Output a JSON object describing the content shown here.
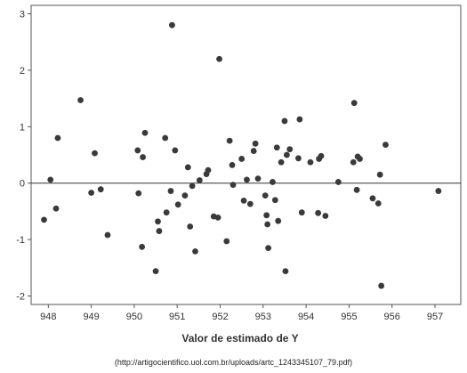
{
  "chart_data": {
    "type": "scatter",
    "title": "",
    "xlabel": "Valor de estimado de Y",
    "ylabel": "",
    "xlim": [
      947.6,
      957.6
    ],
    "ylim": [
      -2.15,
      3.15
    ],
    "xticks": [
      948,
      949,
      950,
      951,
      952,
      953,
      954,
      955,
      956,
      957
    ],
    "yticks": [
      -2,
      -1,
      0,
      1,
      2,
      3
    ],
    "reference_line_y": 0,
    "grid": false,
    "marker_color": "#3a3a3a",
    "points": [
      [
        947.9,
        -0.65
      ],
      [
        948.05,
        0.06
      ],
      [
        948.18,
        -0.45
      ],
      [
        948.22,
        0.8
      ],
      [
        948.75,
        1.47
      ],
      [
        949.0,
        -0.17
      ],
      [
        949.08,
        0.53
      ],
      [
        949.22,
        -0.11
      ],
      [
        949.38,
        -0.92
      ],
      [
        950.08,
        0.58
      ],
      [
        950.1,
        -0.18
      ],
      [
        950.18,
        -1.13
      ],
      [
        950.2,
        0.46
      ],
      [
        950.25,
        0.89
      ],
      [
        950.5,
        -1.56
      ],
      [
        950.55,
        -0.68
      ],
      [
        950.58,
        -0.85
      ],
      [
        950.72,
        0.8
      ],
      [
        950.75,
        -0.52
      ],
      [
        950.85,
        -0.14
      ],
      [
        950.88,
        2.8
      ],
      [
        950.95,
        0.58
      ],
      [
        951.02,
        -0.38
      ],
      [
        951.18,
        -0.22
      ],
      [
        951.25,
        0.28
      ],
      [
        951.3,
        -0.77
      ],
      [
        951.35,
        -0.05
      ],
      [
        951.42,
        -1.21
      ],
      [
        951.52,
        0.05
      ],
      [
        951.68,
        0.16
      ],
      [
        951.72,
        0.23
      ],
      [
        951.85,
        -0.59
      ],
      [
        951.95,
        -0.61
      ],
      [
        951.98,
        2.2
      ],
      [
        952.15,
        -1.03
      ],
      [
        952.22,
        0.75
      ],
      [
        952.28,
        0.32
      ],
      [
        952.3,
        -0.03
      ],
      [
        952.5,
        0.43
      ],
      [
        952.55,
        -0.31
      ],
      [
        952.62,
        0.06
      ],
      [
        952.7,
        -0.37
      ],
      [
        952.78,
        0.57
      ],
      [
        952.82,
        0.7
      ],
      [
        952.88,
        0.08
      ],
      [
        953.05,
        -0.22
      ],
      [
        953.08,
        -0.57
      ],
      [
        953.1,
        -0.73
      ],
      [
        953.12,
        -1.15
      ],
      [
        953.22,
        0.02
      ],
      [
        953.28,
        -0.3
      ],
      [
        953.32,
        0.63
      ],
      [
        953.35,
        -0.67
      ],
      [
        953.42,
        0.37
      ],
      [
        953.5,
        1.1
      ],
      [
        953.52,
        -1.56
      ],
      [
        953.55,
        0.5
      ],
      [
        953.62,
        0.6
      ],
      [
        953.82,
        0.44
      ],
      [
        953.85,
        1.13
      ],
      [
        953.9,
        -0.52
      ],
      [
        954.1,
        0.37
      ],
      [
        954.28,
        -0.53
      ],
      [
        954.3,
        0.43
      ],
      [
        954.35,
        0.48
      ],
      [
        954.45,
        -0.58
      ],
      [
        954.75,
        0.02
      ],
      [
        955.1,
        0.37
      ],
      [
        955.12,
        1.42
      ],
      [
        955.18,
        -0.12
      ],
      [
        955.2,
        0.47
      ],
      [
        955.25,
        0.43
      ],
      [
        955.55,
        -0.27
      ],
      [
        955.68,
        -0.36
      ],
      [
        955.72,
        0.15
      ],
      [
        955.75,
        -1.82
      ],
      [
        955.85,
        0.68
      ],
      [
        957.08,
        -0.14
      ]
    ]
  },
  "source_note": "(http://artigocientifico.uol.com.br/uploads/artc_1243345107_79.pdf)"
}
